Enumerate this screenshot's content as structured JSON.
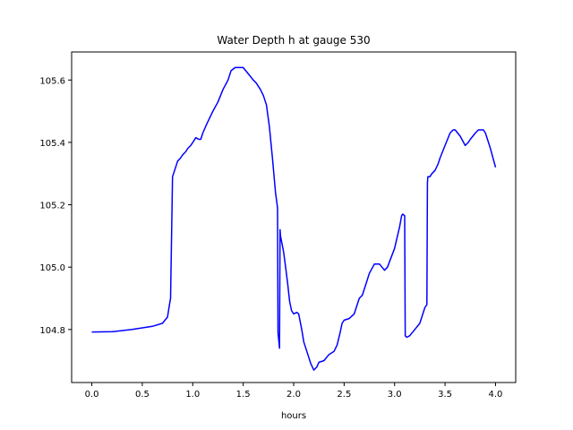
{
  "chart_data": {
    "type": "line",
    "title": "Water Depth h at gauge 530",
    "xlabel": "hours",
    "ylabel": "",
    "xlim": [
      -0.2,
      4.2
    ],
    "ylim": [
      104.63,
      105.69
    ],
    "xticks": [
      0.0,
      0.5,
      1.0,
      1.5,
      2.0,
      2.5,
      3.0,
      3.5,
      4.0
    ],
    "xtick_labels": [
      "0.0",
      "0.5",
      "1.0",
      "1.5",
      "2.0",
      "2.5",
      "3.0",
      "3.5",
      "4.0"
    ],
    "yticks": [
      104.8,
      105.0,
      105.2,
      105.4,
      105.6
    ],
    "ytick_labels": [
      "104.8",
      "105.0",
      "105.2",
      "105.4",
      "105.6"
    ],
    "grid": false,
    "series": [
      {
        "color": "#0000ff",
        "x": [
          0.0,
          0.2,
          0.4,
          0.6,
          0.7,
          0.75,
          0.77,
          0.78,
          0.8,
          0.82,
          0.85,
          0.88,
          0.9,
          0.93,
          0.95,
          0.98,
          1.0,
          1.03,
          1.06,
          1.08,
          1.1,
          1.14,
          1.2,
          1.25,
          1.3,
          1.35,
          1.38,
          1.42,
          1.46,
          1.5,
          1.55,
          1.6,
          1.63,
          1.67,
          1.7,
          1.73,
          1.76,
          1.79,
          1.82,
          1.84,
          1.845,
          1.86,
          1.865,
          1.87,
          1.9,
          1.92,
          1.94,
          1.96,
          1.98,
          2.0,
          2.03,
          2.05,
          2.08,
          2.1,
          2.13,
          2.17,
          2.2,
          2.23,
          2.25,
          2.3,
          2.35,
          2.4,
          2.43,
          2.46,
          2.48,
          2.5,
          2.55,
          2.6,
          2.65,
          2.68,
          2.72,
          2.75,
          2.8,
          2.85,
          2.9,
          2.93,
          3.0,
          3.05,
          3.07,
          3.08,
          3.1,
          3.105,
          3.12,
          3.15,
          3.2,
          3.25,
          3.3,
          3.32,
          3.325,
          3.33,
          3.35,
          3.37,
          3.4,
          3.43,
          3.45,
          3.5,
          3.55,
          3.58,
          3.6,
          3.65,
          3.7,
          3.73,
          3.75,
          3.8,
          3.83,
          3.85,
          3.88,
          3.9,
          3.93,
          3.95,
          4.0
        ],
        "y": [
          104.792,
          104.793,
          104.8,
          104.81,
          104.82,
          104.84,
          104.88,
          104.9,
          105.29,
          105.31,
          105.34,
          105.35,
          105.36,
          105.37,
          105.38,
          105.39,
          105.4,
          105.415,
          105.41,
          105.41,
          105.43,
          105.46,
          105.5,
          105.53,
          105.57,
          105.6,
          105.63,
          105.64,
          105.64,
          105.64,
          105.62,
          105.6,
          105.59,
          105.57,
          105.55,
          105.52,
          105.45,
          105.35,
          105.24,
          105.19,
          104.79,
          104.74,
          105.12,
          105.1,
          105.05,
          105.0,
          104.95,
          104.89,
          104.86,
          104.85,
          104.855,
          104.85,
          104.8,
          104.76,
          104.73,
          104.69,
          104.67,
          104.68,
          104.695,
          104.7,
          104.72,
          104.73,
          104.75,
          104.79,
          104.82,
          104.83,
          104.835,
          104.85,
          104.9,
          104.91,
          104.95,
          104.98,
          105.01,
          105.01,
          104.99,
          105.0,
          105.06,
          105.13,
          105.165,
          105.17,
          105.165,
          104.78,
          104.775,
          104.78,
          104.8,
          104.82,
          104.87,
          104.88,
          105.27,
          105.29,
          105.29,
          105.3,
          105.31,
          105.33,
          105.35,
          105.39,
          105.43,
          105.44,
          105.44,
          105.42,
          105.39,
          105.4,
          105.41,
          105.43,
          105.44,
          105.44,
          105.44,
          105.43,
          105.4,
          105.38,
          105.32
        ]
      }
    ]
  }
}
